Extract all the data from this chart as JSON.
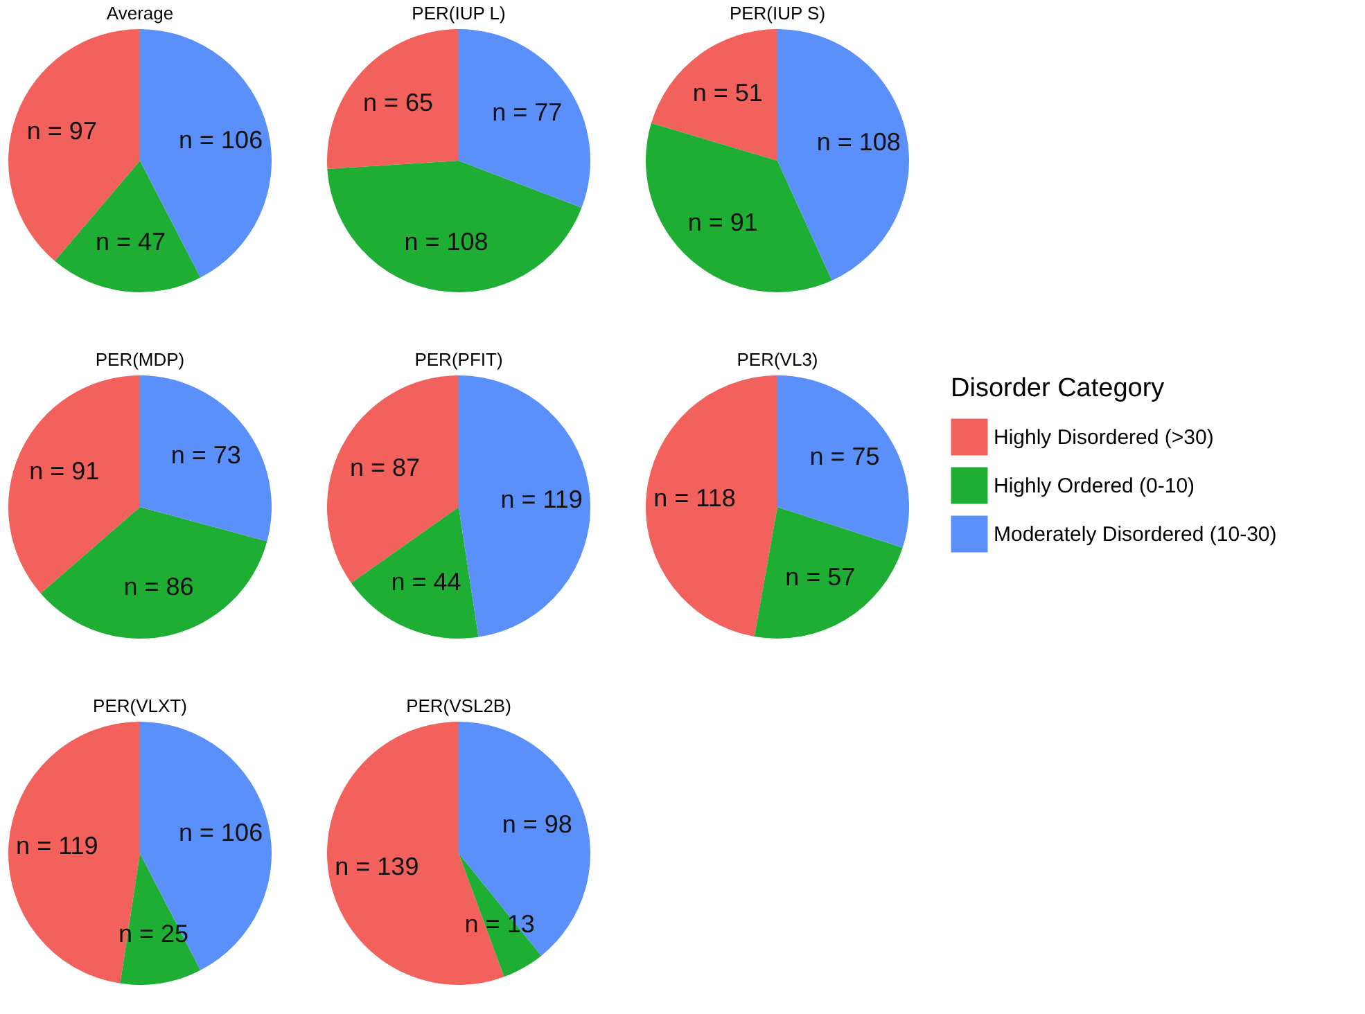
{
  "chart_data": [
    {
      "type": "pie",
      "title": "Average",
      "categories": [
        null,
        null,
        null
      ],
      "values": [
        97,
        47,
        106
      ],
      "value_labels": [
        "n = 97",
        "n = 47",
        "n = 106"
      ],
      "colors": [
        "#f2615b",
        "#1eae34",
        "#5b8ff9"
      ]
    },
    {
      "type": "pie",
      "title": "PER(IUP L)",
      "categories": [
        null,
        null,
        null
      ],
      "values": [
        65,
        108,
        77
      ],
      "value_labels": [
        "n = 65",
        "n = 108",
        "n = 77"
      ],
      "colors": [
        "#f2615b",
        "#1eae34",
        "#5b8ff9"
      ]
    },
    {
      "type": "pie",
      "title": "PER(IUP S)",
      "categories": [
        null,
        null,
        null
      ],
      "values": [
        51,
        91,
        108
      ],
      "value_labels": [
        "n = 51",
        "n = 91",
        "n = 108"
      ],
      "colors": [
        "#f2615b",
        "#1eae34",
        "#5b8ff9"
      ]
    },
    {
      "type": "pie",
      "title": "PER(MDP)",
      "categories": [
        null,
        null,
        null
      ],
      "values": [
        91,
        86,
        73
      ],
      "value_labels": [
        "n = 91",
        "n = 86",
        "n = 73"
      ],
      "colors": [
        "#f2615b",
        "#1eae34",
        "#5b8ff9"
      ]
    },
    {
      "type": "pie",
      "title": "PER(PFIT)",
      "categories": [
        null,
        null,
        null
      ],
      "values": [
        87,
        44,
        119
      ],
      "value_labels": [
        "n = 87",
        "n = 44",
        "n = 119"
      ],
      "colors": [
        "#f2615b",
        "#1eae34",
        "#5b8ff9"
      ]
    },
    {
      "type": "pie",
      "title": "PER(VL3)",
      "categories": [
        "Highly Disordered (>30)",
        "Highly Ordered (0-10)",
        "Moderately Disordered (10-30)"
      ],
      "values": [
        118,
        57,
        75
      ],
      "value_labels": [
        "n = 118",
        "n = 57",
        "n = 75"
      ],
      "colors": [
        "#f2615b",
        "#1eae34",
        "#5b8ff9"
      ],
      "legend": "right",
      "legend_title": "Disorder Category"
    },
    {
      "type": "pie",
      "title": "PER(VLXT)",
      "categories": [
        null,
        null,
        null
      ],
      "values": [
        119,
        25,
        106
      ],
      "value_labels": [
        "n = 119",
        "n = 25",
        "n = 106"
      ],
      "colors": [
        "#f2615b",
        "#1eae34",
        "#5b8ff9"
      ]
    },
    {
      "type": "pie",
      "title": "PER(VSL2B)",
      "categories": [
        null,
        null,
        null
      ],
      "values": [
        139,
        13,
        98
      ],
      "value_labels": [
        "n = 139",
        "n = 13",
        "n = 98"
      ],
      "colors": [
        "#f2615b",
        "#1eae34",
        "#5b8ff9"
      ]
    }
  ]
}
